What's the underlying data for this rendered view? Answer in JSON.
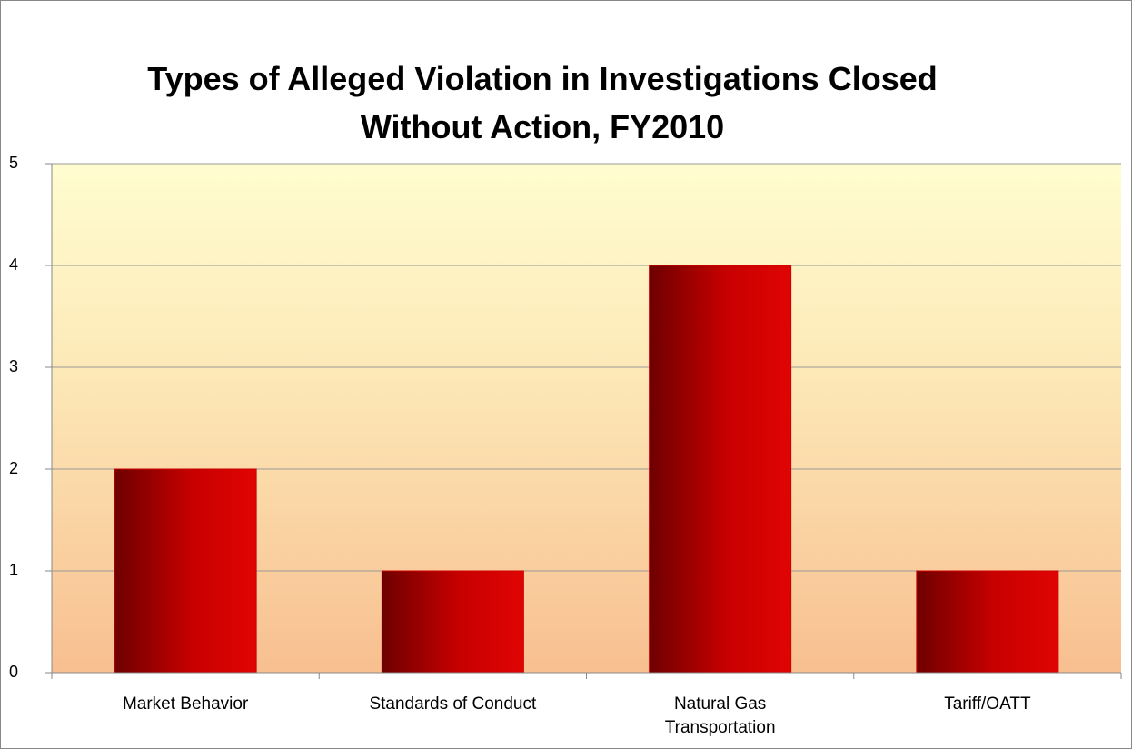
{
  "chart_data": {
    "type": "bar",
    "title": "Types of Alleged Violation in Investigations Closed Without Action, FY2010",
    "categories": [
      "Market Behavior",
      "Standards of Conduct",
      "Natural Gas Transportation",
      "Tariff/OATT"
    ],
    "values": [
      2,
      1,
      4,
      1
    ],
    "color": "#cc0000",
    "ylim": [
      0,
      5
    ],
    "yticks": [
      0,
      1,
      2,
      3,
      4,
      5
    ],
    "grid": true
  }
}
